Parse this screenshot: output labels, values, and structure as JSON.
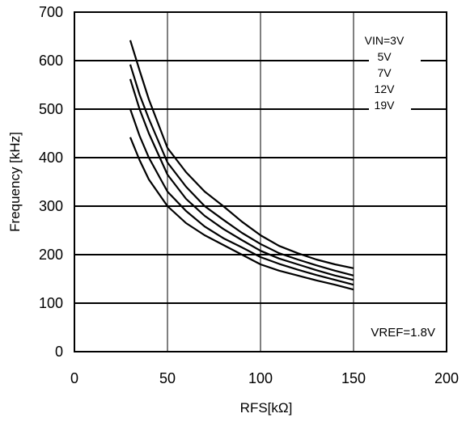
{
  "chart_data": {
    "type": "line",
    "title": "",
    "xlabel": "RFS[kΩ]",
    "ylabel": "Frequency [kHz]",
    "xlim": [
      0,
      200
    ],
    "ylim": [
      0,
      700
    ],
    "x_ticks": [
      0,
      50,
      100,
      150,
      200
    ],
    "y_ticks": [
      0,
      100,
      200,
      300,
      400,
      500,
      600,
      700
    ],
    "grid": "horizontal lines every 100 kHz, vertical lines at 50, 100, 150",
    "legend_position": "top-right",
    "annotation": "VREF=1.8V",
    "series": [
      {
        "name": "VIN=3V",
        "x": [
          30,
          35,
          40,
          50,
          60,
          70,
          80,
          90,
          100,
          110,
          120,
          130,
          140,
          150
        ],
        "y": [
          642,
          580,
          520,
          420,
          370,
          330,
          300,
          268,
          240,
          218,
          203,
          190,
          180,
          172
        ]
      },
      {
        "name": "5V",
        "x": [
          30,
          35,
          40,
          50,
          60,
          70,
          80,
          90,
          100,
          110,
          120,
          130,
          140,
          150
        ],
        "y": [
          592,
          530,
          480,
          390,
          340,
          300,
          272,
          245,
          222,
          203,
          190,
          178,
          167,
          157
        ]
      },
      {
        "name": "7V",
        "x": [
          30,
          35,
          40,
          50,
          60,
          70,
          80,
          90,
          100,
          110,
          120,
          130,
          140,
          150
        ],
        "y": [
          562,
          500,
          450,
          365,
          315,
          280,
          253,
          230,
          208,
          192,
          180,
          168,
          157,
          148
        ]
      },
      {
        "name": "12V",
        "x": [
          30,
          35,
          40,
          50,
          60,
          70,
          80,
          90,
          100,
          110,
          120,
          130,
          140,
          150
        ],
        "y": [
          500,
          445,
          400,
          330,
          290,
          258,
          234,
          215,
          195,
          181,
          169,
          158,
          148,
          138
        ]
      },
      {
        "name": "19V",
        "x": [
          30,
          35,
          40,
          50,
          60,
          70,
          80,
          90,
          100,
          110,
          120,
          130,
          140,
          150
        ],
        "y": [
          442,
          395,
          355,
          300,
          265,
          240,
          220,
          200,
          180,
          167,
          157,
          147,
          138,
          128
        ]
      }
    ]
  }
}
